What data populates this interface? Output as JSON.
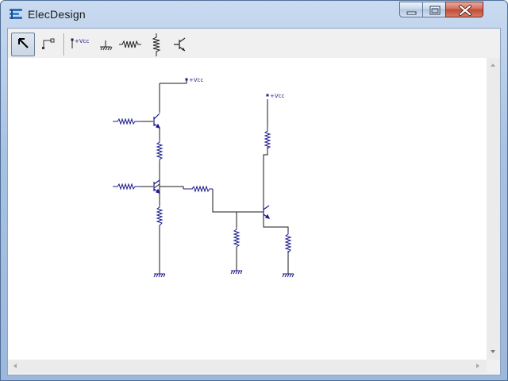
{
  "window": {
    "title": "ElecDesign"
  },
  "colors": {
    "wire": "#1a1a1a",
    "component": "#1c1c8a",
    "titlebar": "#b8cde8",
    "close": "#c95a45"
  },
  "toolbar": {
    "tools": [
      {
        "name": "select-tool",
        "icon": "arrow-pointer-icon",
        "active": true
      },
      {
        "name": "wire-tool",
        "icon": "wire-icon",
        "active": false
      },
      {
        "name": "vcc-tool",
        "icon": "vcc-icon",
        "label": "+Vcc",
        "active": false
      },
      {
        "name": "ground-tool",
        "icon": "ground-icon",
        "active": false
      },
      {
        "name": "resistor-horizontal-tool",
        "icon": "resistor-horizontal-icon",
        "active": false
      },
      {
        "name": "resistor-vertical-tool",
        "icon": "resistor-vertical-icon",
        "active": false
      },
      {
        "name": "transistor-tool",
        "icon": "transistor-icon",
        "active": false
      }
    ]
  },
  "schematic": {
    "vcc_label": "+Vcc"
  }
}
